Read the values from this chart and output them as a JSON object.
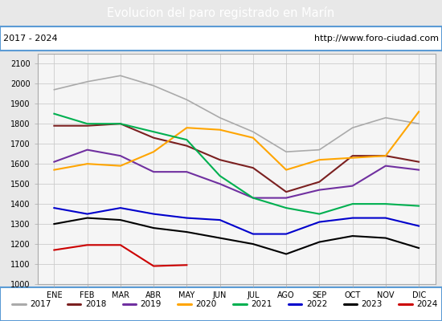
{
  "title": "Evolucion del paro registrado en Marín",
  "subtitle_left": "2017 - 2024",
  "subtitle_right": "http://www.foro-ciudad.com",
  "title_bg_color": "#5b9bd5",
  "title_text_color": "white",
  "months": [
    "ENE",
    "FEB",
    "MAR",
    "ABR",
    "MAY",
    "JUN",
    "JUL",
    "AGO",
    "SEP",
    "OCT",
    "NOV",
    "DIC"
  ],
  "ylim": [
    1000,
    2150
  ],
  "yticks": [
    1000,
    1100,
    1200,
    1300,
    1400,
    1500,
    1600,
    1700,
    1800,
    1900,
    2000,
    2100
  ],
  "series": {
    "2017": {
      "color": "#aaaaaa",
      "linewidth": 1.2,
      "values": [
        1970,
        2010,
        2040,
        1990,
        1920,
        1830,
        1760,
        1660,
        1670,
        1780,
        1830,
        1800
      ]
    },
    "2018": {
      "color": "#7b2020",
      "linewidth": 1.5,
      "values": [
        1790,
        1790,
        1800,
        1730,
        1690,
        1620,
        1580,
        1460,
        1510,
        1640,
        1640,
        1610
      ]
    },
    "2019": {
      "color": "#7030a0",
      "linewidth": 1.5,
      "values": [
        1610,
        1670,
        1640,
        1560,
        1560,
        1500,
        1430,
        1430,
        1470,
        1490,
        1590,
        1570
      ]
    },
    "2020": {
      "color": "#ffa500",
      "linewidth": 1.5,
      "values": [
        1570,
        1600,
        1590,
        1660,
        1780,
        1770,
        1730,
        1570,
        1620,
        1630,
        1640,
        1860
      ]
    },
    "2021": {
      "color": "#00b050",
      "linewidth": 1.5,
      "values": [
        1850,
        1800,
        1800,
        1760,
        1720,
        1540,
        1430,
        1380,
        1350,
        1400,
        1400,
        1390
      ]
    },
    "2022": {
      "color": "#0000cc",
      "linewidth": 1.5,
      "values": [
        1380,
        1350,
        1380,
        1350,
        1330,
        1320,
        1250,
        1250,
        1310,
        1330,
        1330,
        1290
      ]
    },
    "2023": {
      "color": "#000000",
      "linewidth": 1.5,
      "values": [
        1300,
        1330,
        1320,
        1280,
        1260,
        1230,
        1200,
        1150,
        1210,
        1240,
        1230,
        1180
      ]
    },
    "2024": {
      "color": "#cc0000",
      "linewidth": 1.5,
      "values": [
        1170,
        1195,
        1195,
        1090,
        1095,
        null,
        null,
        null,
        null,
        null,
        null,
        null
      ]
    }
  },
  "background_color": "#e8e8e8",
  "plot_bg_color": "#f5f5f5",
  "grid_color": "#cccccc",
  "border_color": "#5b9bd5"
}
